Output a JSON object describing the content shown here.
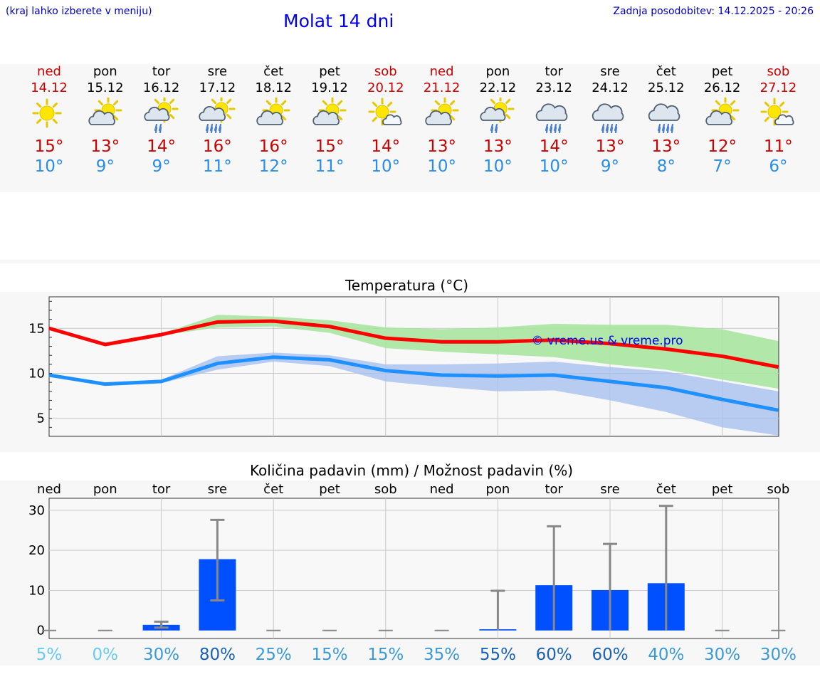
{
  "header": {
    "location_hint": "(kraj lahko izberete v meniju)",
    "title": "Molat 14 dni",
    "last_update": "Zadnja posodobitev: 14.12.2025 - 20:26"
  },
  "days": [
    {
      "name": "ned",
      "date": "14.12",
      "icon": "sun-icon",
      "tmax": "15°",
      "tmin": "10°",
      "weekend": true
    },
    {
      "name": "pon",
      "date": "15.12",
      "icon": "partly-cloudy-icon",
      "tmax": "13°",
      "tmin": "9°",
      "weekend": false
    },
    {
      "name": "tor",
      "date": "16.12",
      "icon": "sun-cloud-rain-icon",
      "tmax": "14°",
      "tmin": "9°",
      "weekend": false
    },
    {
      "name": "sre",
      "date": "17.12",
      "icon": "sun-cloud-heavy-rain-icon",
      "tmax": "16°",
      "tmin": "11°",
      "weekend": false
    },
    {
      "name": "čet",
      "date": "18.12",
      "icon": "partly-cloudy-icon",
      "tmax": "16°",
      "tmin": "12°",
      "weekend": false
    },
    {
      "name": "pet",
      "date": "19.12",
      "icon": "partly-cloudy-icon",
      "tmax": "15°",
      "tmin": "11°",
      "weekend": false
    },
    {
      "name": "sob",
      "date": "20.12",
      "icon": "sun-small-cloud-icon",
      "tmax": "14°",
      "tmin": "10°",
      "weekend": true
    },
    {
      "name": "ned",
      "date": "21.12",
      "icon": "partly-cloudy-icon",
      "tmax": "13°",
      "tmin": "10°",
      "weekend": true
    },
    {
      "name": "pon",
      "date": "22.12",
      "icon": "sun-cloud-rain-icon",
      "tmax": "13°",
      "tmin": "10°",
      "weekend": false
    },
    {
      "name": "tor",
      "date": "23.12",
      "icon": "cloud-heavy-rain-icon",
      "tmax": "14°",
      "tmin": "10°",
      "weekend": false
    },
    {
      "name": "sre",
      "date": "24.12",
      "icon": "cloud-heavy-rain-icon",
      "tmax": "13°",
      "tmin": "9°",
      "weekend": false
    },
    {
      "name": "čet",
      "date": "25.12",
      "icon": "cloud-heavy-rain-icon",
      "tmax": "13°",
      "tmin": "8°",
      "weekend": false
    },
    {
      "name": "pet",
      "date": "26.12",
      "icon": "partly-cloudy-icon",
      "tmax": "12°",
      "tmin": "7°",
      "weekend": false
    },
    {
      "name": "sob",
      "date": "27.12",
      "icon": "sun-small-cloud-icon",
      "tmax": "11°",
      "tmin": "6°",
      "weekend": true
    }
  ],
  "colors": {
    "max": "#ff0000",
    "min": "#1e90ff",
    "max_band": "#a8e6a0",
    "min_band": "#a8c0f0",
    "bar": "#0050ff",
    "whisker": "#888888"
  },
  "chart_data": [
    {
      "type": "line",
      "title": "Temperatura (°C)",
      "watermark": "© vreme.us & vreme.pro",
      "x": [
        0,
        1,
        2,
        3,
        4,
        5,
        6,
        7,
        8,
        9,
        10,
        11,
        12,
        13
      ],
      "ylim": [
        3,
        18.5
      ],
      "yticks": [
        5,
        10,
        15
      ],
      "series": [
        {
          "name": "max",
          "values": [
            15.0,
            13.2,
            14.3,
            15.7,
            15.8,
            15.2,
            13.9,
            13.5,
            13.5,
            13.7,
            13.3,
            12.7,
            11.9,
            10.7
          ],
          "band_low": [
            15.0,
            13.2,
            14.2,
            15.1,
            15.2,
            14.5,
            12.8,
            12.4,
            12.1,
            11.8,
            11.0,
            10.4,
            9.3,
            8.3
          ],
          "band_high": [
            15.0,
            13.3,
            14.4,
            16.5,
            16.3,
            15.9,
            15.1,
            14.9,
            15.1,
            15.5,
            15.4,
            15.4,
            14.9,
            13.6
          ]
        },
        {
          "name": "min",
          "values": [
            9.8,
            8.8,
            9.1,
            11.1,
            11.8,
            11.5,
            10.3,
            9.8,
            9.7,
            9.8,
            9.1,
            8.4,
            7.1,
            5.9
          ],
          "band_low": [
            9.8,
            8.6,
            8.9,
            10.4,
            11.3,
            10.8,
            9.1,
            8.5,
            8.0,
            8.1,
            7.0,
            5.7,
            4.0,
            3.1
          ],
          "band_high": [
            9.8,
            9.0,
            9.3,
            11.9,
            12.3,
            12.0,
            11.0,
            11.0,
            11.1,
            11.3,
            10.7,
            10.2,
            9.1,
            8.0
          ]
        }
      ]
    },
    {
      "type": "bar",
      "title": "Količina padavin (mm) / Možnost padavin (%)",
      "categories": [
        "ned",
        "pon",
        "tor",
        "sre",
        "čet",
        "pet",
        "sob",
        "ned",
        "pon",
        "tor",
        "sre",
        "čet",
        "pet",
        "sob"
      ],
      "ylim": [
        -2,
        33
      ],
      "yticks": [
        0,
        10,
        20,
        30
      ],
      "values": [
        0,
        0,
        1.4,
        17.8,
        0,
        0,
        0,
        0,
        0.3,
        11.3,
        10.1,
        11.8,
        0,
        0
      ],
      "err_low": [
        0,
        0,
        0.7,
        7.5,
        0,
        0,
        0,
        0,
        0,
        0,
        0,
        0,
        0,
        0
      ],
      "err_high": [
        0,
        0,
        2.2,
        27.6,
        0,
        0,
        0,
        0,
        9.9,
        26.0,
        21.6,
        31.1,
        0,
        0
      ],
      "probability": [
        "5%",
        "0%",
        "30%",
        "80%",
        "25%",
        "15%",
        "15%",
        "35%",
        "55%",
        "60%",
        "60%",
        "40%",
        "30%",
        "30%"
      ],
      "probability_colors": [
        "#66ccee",
        "#66ccee",
        "#3a9ad8",
        "#1a62b8",
        "#3a9ad8",
        "#3a9ad8",
        "#3a9ad8",
        "#3a9ad8",
        "#1a62b8",
        "#1a62b8",
        "#1a62b8",
        "#3a9ad8",
        "#3a9ad8",
        "#3a9ad8"
      ]
    }
  ]
}
